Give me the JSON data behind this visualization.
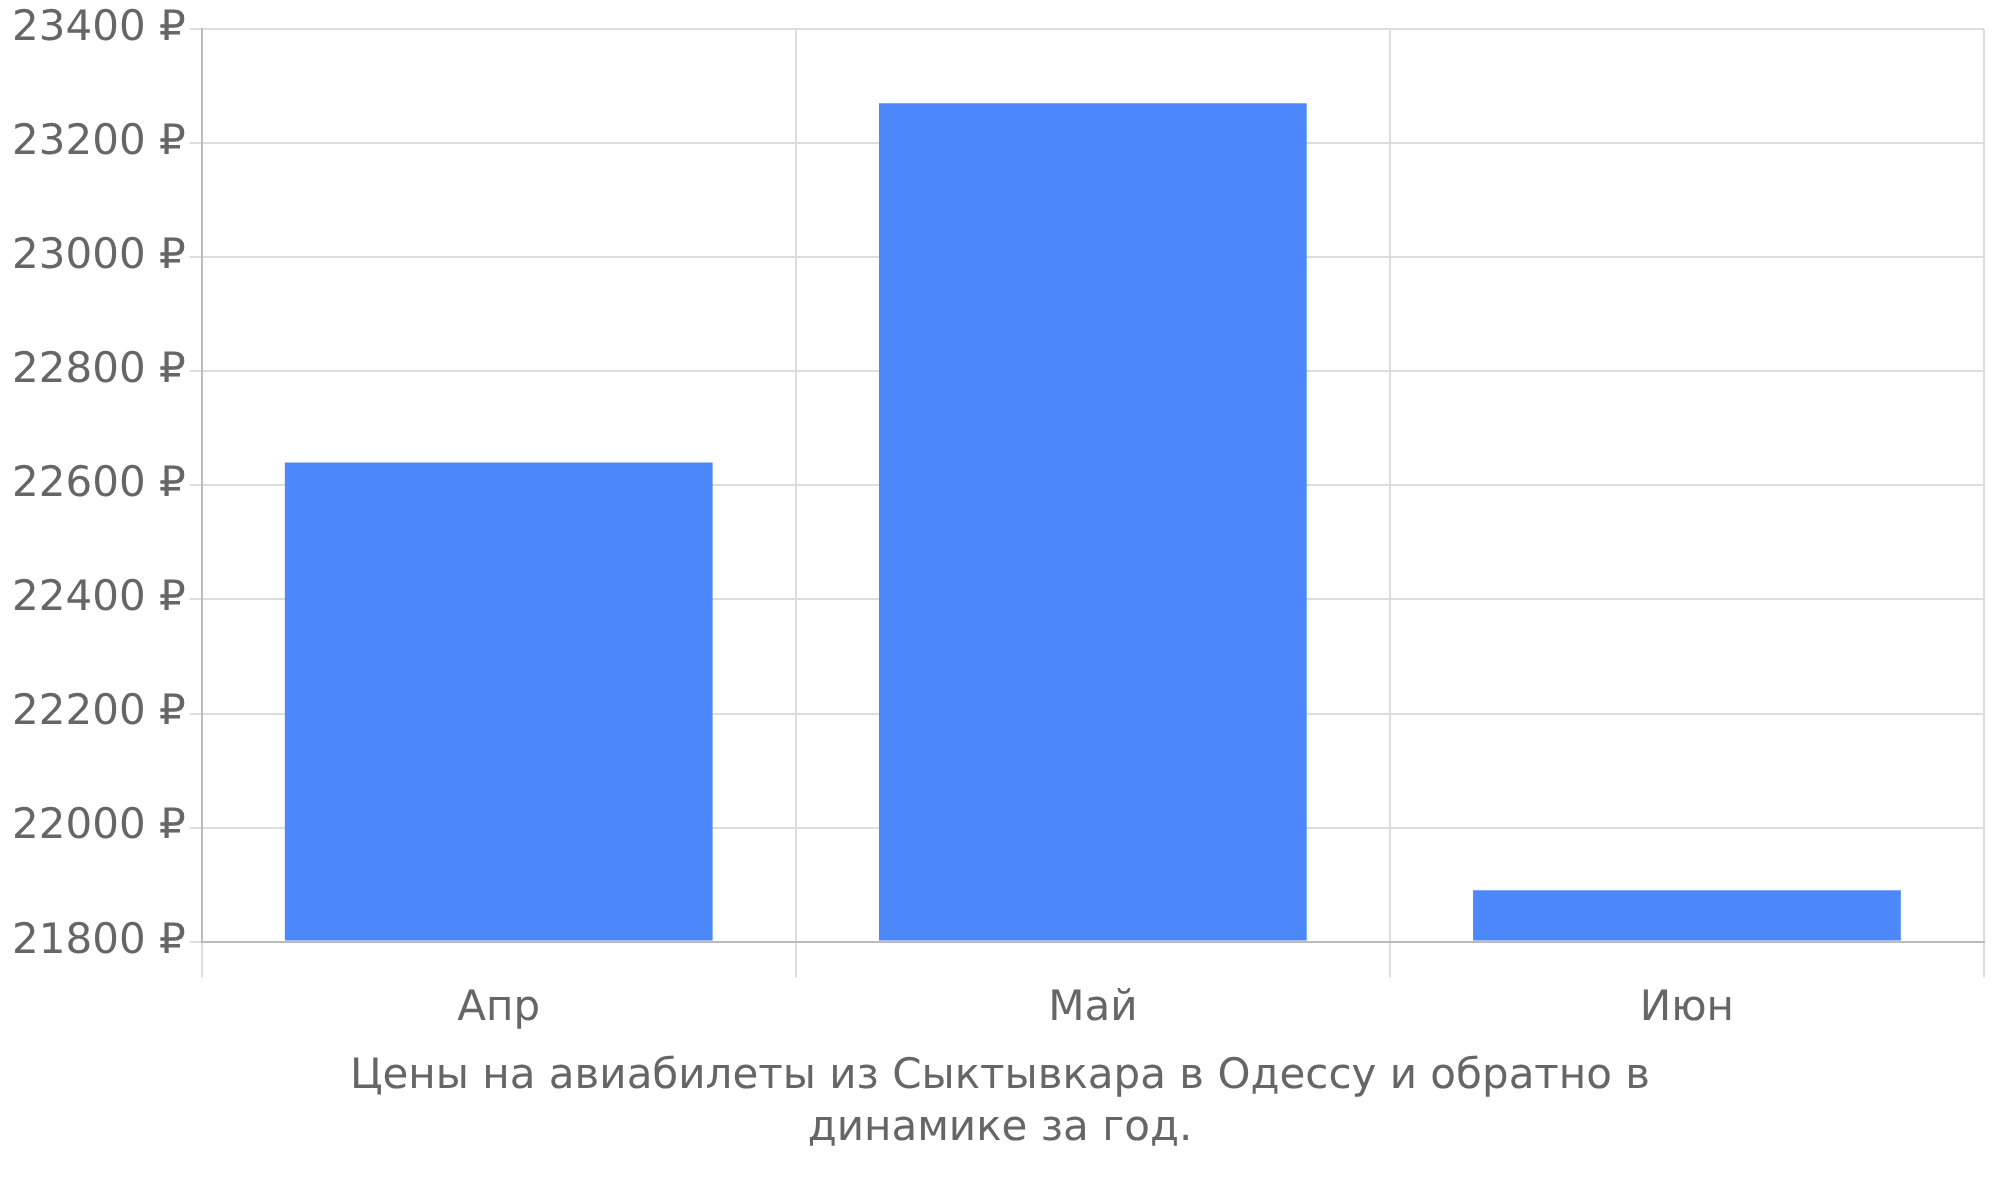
{
  "chart_data": {
    "type": "bar",
    "categories": [
      "Апр",
      "Май",
      "Июн"
    ],
    "values": [
      22640,
      23270,
      21890
    ],
    "color": "#4d88fb",
    "ylim": [
      21800,
      23400
    ],
    "yticks": [
      {
        "value": 21800,
        "label": "21800 ₽"
      },
      {
        "value": 22000,
        "label": "22000 ₽"
      },
      {
        "value": 22200,
        "label": "22200 ₽"
      },
      {
        "value": 22400,
        "label": "22400 ₽"
      },
      {
        "value": 22600,
        "label": "22600 ₽"
      },
      {
        "value": 22800,
        "label": "22800 ₽"
      },
      {
        "value": 23000,
        "label": "23000 ₽"
      },
      {
        "value": 23200,
        "label": "23200 ₽"
      },
      {
        "value": 23400,
        "label": "23400 ₽"
      }
    ],
    "grid": true,
    "legend": false,
    "annotations": [
      "Цены на авиабилеты из Сыктывкара в Одессу и обратно в динамике за год."
    ]
  }
}
